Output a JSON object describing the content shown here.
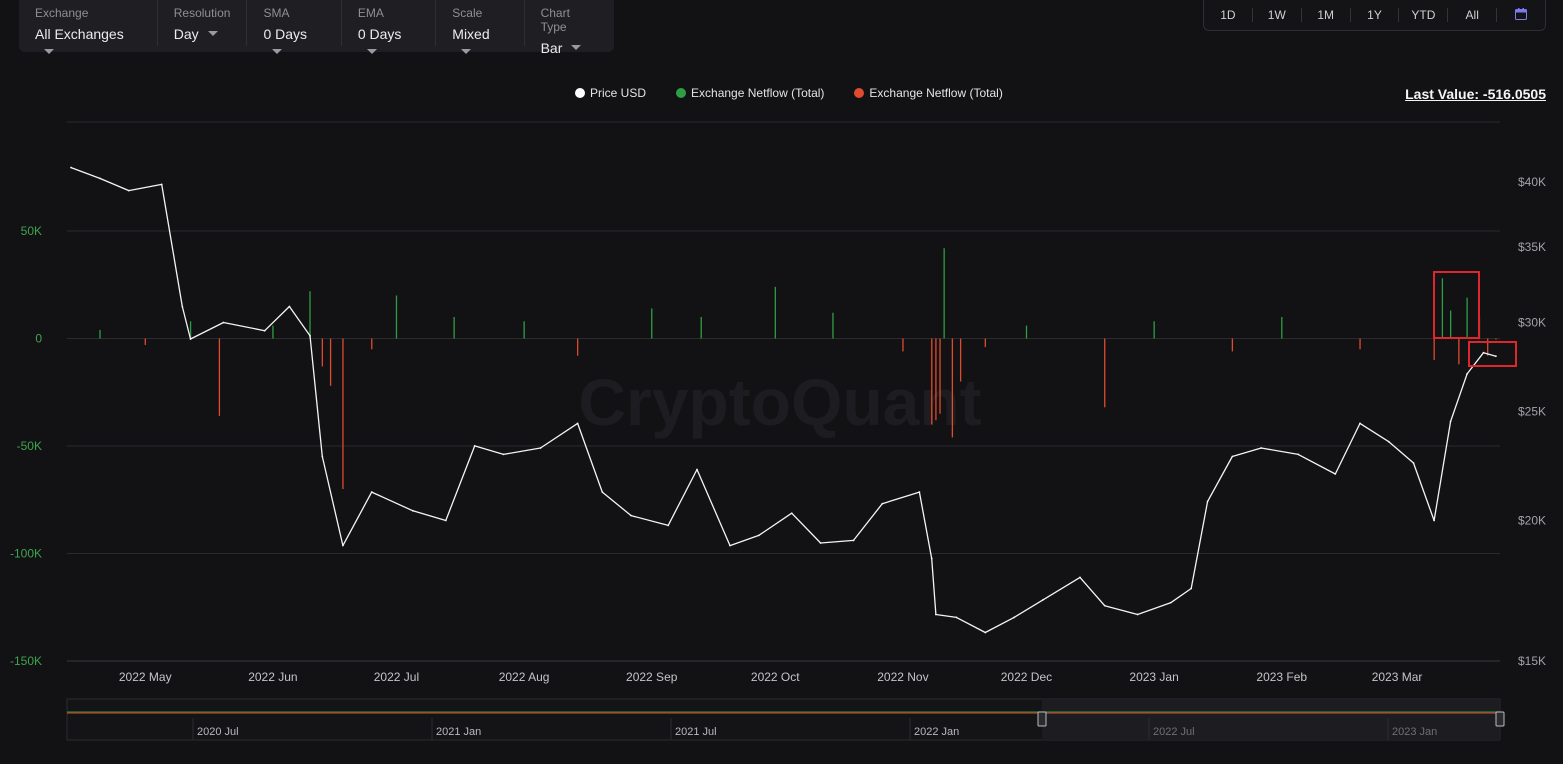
{
  "toolbar": {
    "controls": [
      {
        "label": "Exchange",
        "value": "All Exchanges"
      },
      {
        "label": "Resolution",
        "value": "Day"
      },
      {
        "label": "SMA",
        "value": "0 Days"
      },
      {
        "label": "EMA",
        "value": "0 Days"
      },
      {
        "label": "Scale",
        "value": "Mixed"
      },
      {
        "label": "Chart Type",
        "value": "Bar"
      }
    ]
  },
  "ranges": [
    "1D",
    "1W",
    "1M",
    "1Y",
    "YTD",
    "All"
  ],
  "calendar_icon": "calendar-icon",
  "legend": [
    {
      "label": "Price USD",
      "color": "#ffffff"
    },
    {
      "label": "Exchange Netflow (Total)",
      "color": "#2e9e44"
    },
    {
      "label": "Exchange Netflow (Total)",
      "color": "#e04a2f"
    }
  ],
  "last_value": "Last Value: -516.0505",
  "watermark": "CryptoQuant",
  "chart_data": {
    "type": "bar",
    "x_ticks": [
      "2022 May",
      "2022 Jun",
      "2022 Jul",
      "2022 Aug",
      "2022 Sep",
      "2022 Oct",
      "2022 Nov",
      "2022 Dec",
      "2023 Jan",
      "2023 Feb",
      "2023 Mar"
    ],
    "left_axis": {
      "ticks": [
        "50K",
        "0",
        "-50K",
        "-100K",
        "-150K"
      ],
      "range": [
        -150000,
        50000
      ]
    },
    "right_axis": {
      "ticks": [
        "$40K",
        "$35K",
        "$30K",
        "$25K",
        "$20K",
        "$15K"
      ],
      "range": [
        15000,
        40000
      ],
      "scale": "log"
    },
    "price_series": {
      "name": "Price USD",
      "dates": [
        "2022-04-13",
        "2022-04-20",
        "2022-04-27",
        "2022-05-05",
        "2022-05-10",
        "2022-05-12",
        "2022-05-20",
        "2022-05-30",
        "2022-06-05",
        "2022-06-10",
        "2022-06-13",
        "2022-06-18",
        "2022-06-25",
        "2022-07-05",
        "2022-07-13",
        "2022-07-20",
        "2022-07-27",
        "2022-08-05",
        "2022-08-14",
        "2022-08-20",
        "2022-08-27",
        "2022-09-05",
        "2022-09-12",
        "2022-09-20",
        "2022-09-27",
        "2022-10-05",
        "2022-10-12",
        "2022-10-20",
        "2022-10-27",
        "2022-11-05",
        "2022-11-08",
        "2022-11-09",
        "2022-11-14",
        "2022-11-21",
        "2022-11-28",
        "2022-12-05",
        "2022-12-14",
        "2022-12-20",
        "2022-12-28",
        "2023-01-05",
        "2023-01-10",
        "2023-01-14",
        "2023-01-20",
        "2023-01-27",
        "2023-02-05",
        "2023-02-14",
        "2023-02-20",
        "2023-02-27",
        "2023-03-05",
        "2023-03-10",
        "2023-03-14",
        "2023-03-18",
        "2023-03-22",
        "2023-03-25"
      ],
      "values": [
        41200,
        40300,
        39300,
        39800,
        31000,
        29000,
        30000,
        29500,
        31000,
        29200,
        22800,
        19000,
        21200,
        20400,
        20000,
        23300,
        22900,
        23200,
        24400,
        21200,
        20200,
        19800,
        22200,
        19000,
        19400,
        20300,
        19100,
        19200,
        20700,
        21200,
        18500,
        16500,
        16400,
        15900,
        16400,
        17000,
        17800,
        16800,
        16500,
        16900,
        17400,
        20800,
        22800,
        23200,
        22900,
        22000,
        24400,
        23500,
        22500,
        20000,
        24500,
        27000,
        28200,
        28000
      ]
    },
    "netflow_series": {
      "name": "Exchange Netflow (Total)",
      "dates": [
        "2022-04-20",
        "2022-05-01",
        "2022-05-12",
        "2022-05-19",
        "2022-06-01",
        "2022-06-10",
        "2022-06-13",
        "2022-06-15",
        "2022-06-18",
        "2022-06-25",
        "2022-07-01",
        "2022-07-15",
        "2022-08-01",
        "2022-08-14",
        "2022-09-01",
        "2022-09-13",
        "2022-10-01",
        "2022-10-15",
        "2022-11-01",
        "2022-11-08",
        "2022-11-09",
        "2022-11-10",
        "2022-11-11",
        "2022-11-13",
        "2022-11-15",
        "2022-11-21",
        "2022-12-01",
        "2022-12-20",
        "2023-01-01",
        "2023-01-20",
        "2023-02-01",
        "2023-02-20",
        "2023-03-10",
        "2023-03-12",
        "2023-03-14",
        "2023-03-16",
        "2023-03-18",
        "2023-03-21",
        "2023-03-23",
        "2023-03-25"
      ],
      "values": [
        4000,
        -3000,
        8000,
        -36000,
        6000,
        22000,
        -13000,
        -22000,
        -70000,
        -5000,
        20000,
        10000,
        8000,
        -8000,
        14000,
        10000,
        24000,
        12000,
        -6000,
        -40000,
        -38000,
        -35000,
        42000,
        -46000,
        -20000,
        -4000,
        6000,
        -32000,
        8000,
        -6000,
        10000,
        -5000,
        -10000,
        28000,
        13000,
        -12000,
        19000,
        10000,
        -8000,
        -516
      ]
    }
  }
}
